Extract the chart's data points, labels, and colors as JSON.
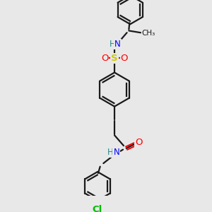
{
  "background_color": "#e8e8e8",
  "bond_color": "#1a1a1a",
  "atom_colors": {
    "N": "#0000ff",
    "O": "#ff0000",
    "S": "#cccc00",
    "Cl": "#00bb00",
    "C": "#1a1a1a"
  },
  "figsize": [
    3.0,
    3.0
  ],
  "dpi": 100,
  "xlim": [
    0,
    300
  ],
  "ylim": [
    0,
    300
  ]
}
